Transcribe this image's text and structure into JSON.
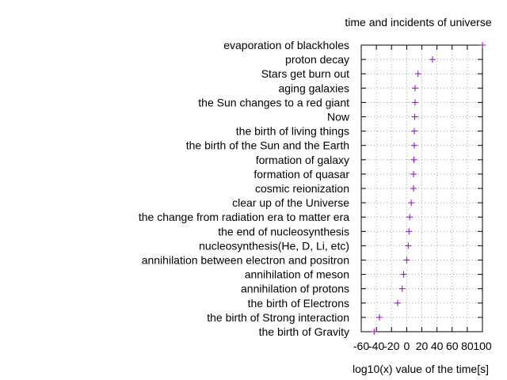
{
  "chart_data": {
    "type": "scatter",
    "title": "time and incidents of universe",
    "xlabel": "log10(x) value of the time[s]",
    "ylabel": "",
    "xlim": [
      -60,
      100
    ],
    "x_ticks": [
      "-60",
      "-40",
      "-20",
      "0",
      "20",
      "40",
      "60",
      "80",
      "100"
    ],
    "grid": true,
    "marker": "+",
    "marker_color": "#9400d3",
    "categories": [
      "the birth of Gravity",
      "the birth of Strong interaction",
      "the birth of Electrons",
      "annihilation of protons",
      "annihilation of meson",
      "annihilation between electron and positron",
      "nucleosynthesis(He, D, Li, etc)",
      "the end of nucleosynthesis",
      "the change from radiation era to matter era",
      "clear up of the Universe",
      "cosmic reionization",
      "formation of quasar",
      "formation of galaxy",
      "the birth of the Sun and the Earth",
      "the birth of living things",
      "Now",
      "the Sun changes to a red giant",
      "aging galaxies",
      "Stars get burn out",
      "proton decay",
      "evaporation of blackholes"
    ],
    "values": [
      -43,
      -36,
      -12,
      -6,
      -4,
      0,
      2,
      3,
      4,
      6,
      9,
      9,
      9.5,
      10,
      10,
      10.5,
      11,
      11,
      15,
      34,
      100
    ]
  }
}
